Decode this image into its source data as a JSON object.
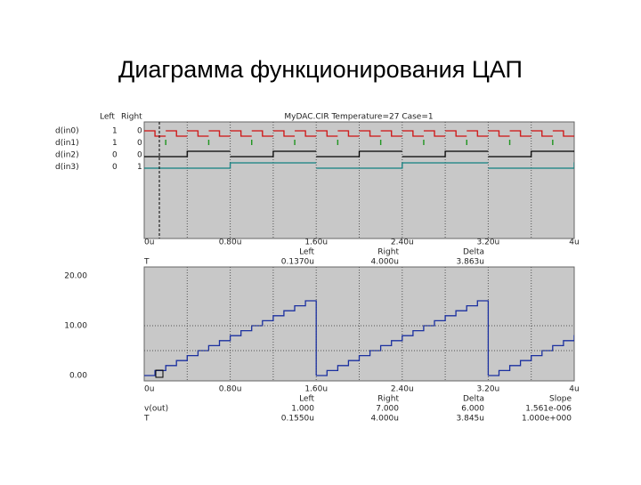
{
  "title": "Диаграмма функционирования ЦАП",
  "top_panel": {
    "header": "MyDAC.CIR Temperature=27 Case=1",
    "columns": [
      "Left",
      "Right"
    ],
    "signals": [
      {
        "name": "d(in0)",
        "left": "1",
        "right": "0",
        "color": "#d01010"
      },
      {
        "name": "d(in1)",
        "left": "1",
        "right": "0",
        "color": "#109010"
      },
      {
        "name": "d(in2)",
        "left": "0",
        "right": "0",
        "color": "#000000"
      },
      {
        "name": "d(in3)",
        "left": "0",
        "right": "1",
        "color": "#108080"
      }
    ],
    "x_labels": [
      "0u",
      "0.80u",
      "1.60u",
      "2.40u",
      "3.20u",
      "4u"
    ],
    "cursor_table": {
      "columns": [
        "Left",
        "Right",
        "Delta"
      ],
      "rows": [
        [
          "T",
          "0.1370u",
          "4.000u",
          "3.863u"
        ]
      ]
    }
  },
  "bottom_panel": {
    "y_labels": [
      "20.00",
      "10.00",
      "0.00"
    ],
    "x_labels": [
      "0u",
      "0.80u",
      "1.60u",
      "2.40u",
      "3.20u",
      "4u"
    ],
    "cursor_table": {
      "columns": [
        "Left",
        "Right",
        "Delta",
        "Slope"
      ],
      "rows": [
        [
          "v(out)",
          "1.000",
          "7.000",
          "6.000",
          "1.561e-006"
        ],
        [
          "T",
          "0.1550u",
          "4.000u",
          "3.845u",
          "1.000e+000"
        ]
      ]
    }
  }
}
